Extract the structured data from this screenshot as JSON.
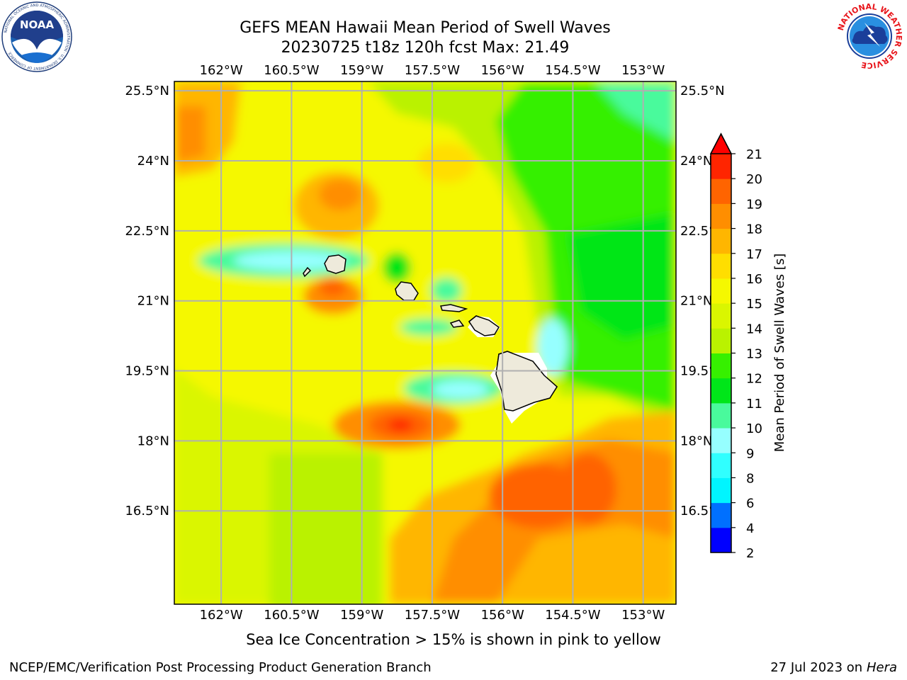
{
  "header": {
    "title": "GEFS MEAN Hawaii Mean Period of Swell Waves",
    "subtitle": "20230725 t18z 120h fcst   Max: 21.49"
  },
  "logos": {
    "left": "NOAA",
    "left_ring": "NATIONAL OCEANIC AND ATMOSPHERIC ADMINISTRATION · U.S. DEPARTMENT OF COMMERCE",
    "right_ring": "NATIONAL WEATHER SERVICE"
  },
  "map": {
    "lon_range": [
      -163.0,
      -152.3
    ],
    "lat_range": [
      14.5,
      25.7
    ],
    "lon_ticks": [
      "162°W",
      "160.5°W",
      "159°W",
      "157.5°W",
      "156°W",
      "154.5°W",
      "153°W"
    ],
    "lat_ticks": [
      "25.5°N",
      "24°N",
      "22.5°N",
      "21°N",
      "19.5°N",
      "18°N",
      "16.5°N"
    ],
    "gridlines": true
  },
  "colorbar": {
    "label": "Mean Period of Swell Waves [s]",
    "levels": [
      "2",
      "4",
      "6",
      "8",
      "9",
      "10",
      "11",
      "12",
      "13",
      "14",
      "15",
      "16",
      "17",
      "18",
      "19",
      "20",
      "21"
    ],
    "colors": [
      "#0000ff",
      "#0070ff",
      "#00f5ff",
      "#30ffff",
      "#96ffff",
      "#49fa9c",
      "#00e619",
      "#36f000",
      "#baf200",
      "#daf600",
      "#f5f800",
      "#ffde00",
      "#ffb600",
      "#ff8e00",
      "#ff6400",
      "#ff2500"
    ],
    "extend_color": "#ff0000"
  },
  "note": "Sea Ice Concentration > 15% is shown in pink to yellow",
  "footer": {
    "left": "NCEP/EMC/Verification Post Processing Product Generation Branch",
    "right_date": "27 Jul 2023 on",
    "right_host": "Hera"
  }
}
